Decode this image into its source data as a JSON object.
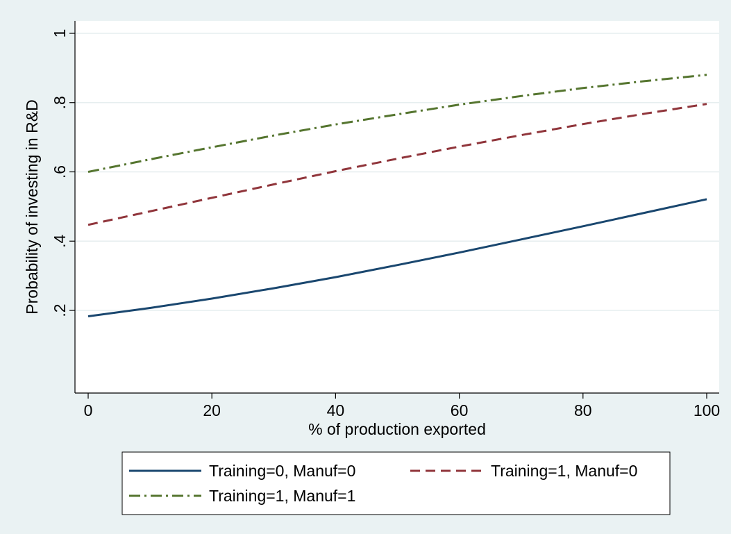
{
  "chart_data": {
    "type": "line",
    "xlabel": "% of production exported",
    "ylabel": "Probability of investing in R&D",
    "xlim": [
      0,
      100
    ],
    "ylim": [
      0,
      1
    ],
    "x_ticks": [
      0,
      20,
      40,
      60,
      80,
      100
    ],
    "x_tick_labels": [
      "0",
      "20",
      "40",
      "60",
      "80",
      "100"
    ],
    "y_ticks": [
      0.2,
      0.4,
      0.6,
      0.8,
      1.0
    ],
    "y_tick_labels": [
      ".2",
      ".4",
      ".6",
      ".8",
      "1"
    ],
    "grid": "horizontal",
    "legend_placement": "bottom",
    "background_color": "#eaf2f3",
    "plot_background_color": "#ffffff",
    "x": [
      0,
      10,
      20,
      30,
      40,
      50,
      60,
      70,
      80,
      90,
      100
    ],
    "series": [
      {
        "name": "Training=0, Manuf=0",
        "color": "#1a476f",
        "dash": "solid",
        "values": [
          0.183,
          0.207,
          0.234,
          0.264,
          0.296,
          0.331,
          0.367,
          0.405,
          0.443,
          0.482,
          0.521
        ]
      },
      {
        "name": "Training=1, Manuf=0",
        "color": "#90353b",
        "dash": "dash",
        "values": [
          0.447,
          0.486,
          0.525,
          0.564,
          0.602,
          0.638,
          0.673,
          0.706,
          0.738,
          0.768,
          0.796
        ]
      },
      {
        "name": "Training=1, Manuf=1",
        "color": "#55752f",
        "dash": "dashdot",
        "values": [
          0.6,
          0.636,
          0.671,
          0.705,
          0.737,
          0.766,
          0.794,
          0.819,
          0.842,
          0.862,
          0.88
        ]
      }
    ]
  }
}
